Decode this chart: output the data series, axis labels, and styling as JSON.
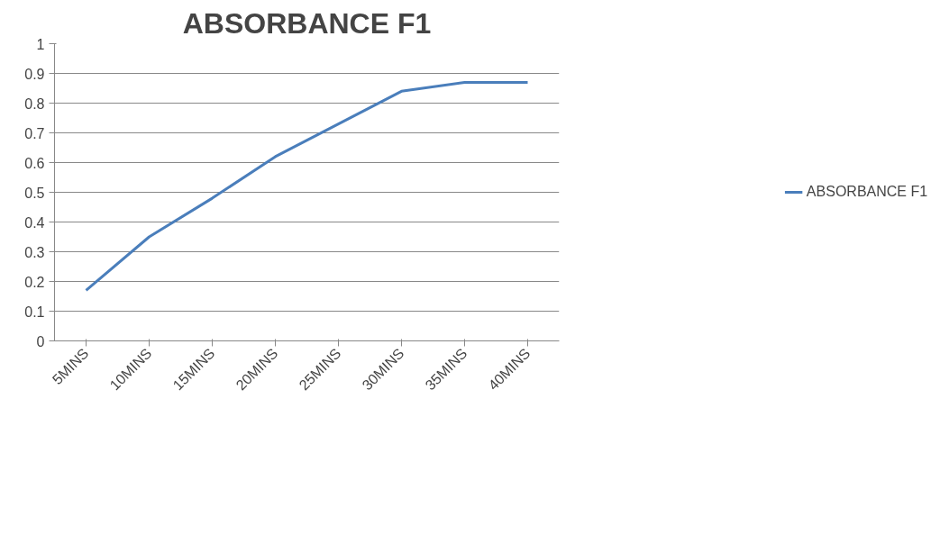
{
  "chart_data": {
    "type": "line",
    "title": "ABSORBANCE F1",
    "categories": [
      "5MINS",
      "10MINS",
      "15MINS",
      "20MINS",
      "25MINS",
      "30MINS",
      "35MINS",
      "40MINS"
    ],
    "series": [
      {
        "name": "ABSORBANCE F1",
        "color": "#4a7ebb",
        "values": [
          0.17,
          0.35,
          0.48,
          0.62,
          0.73,
          0.84,
          0.87,
          0.87
        ]
      }
    ],
    "ylim": [
      0,
      1
    ],
    "yticks": [
      0,
      0.1,
      0.2,
      0.3,
      0.4,
      0.5,
      0.6,
      0.7,
      0.8,
      0.9,
      1
    ],
    "grid": "y",
    "legend": "right",
    "marker": "none",
    "line_style": "solid"
  }
}
